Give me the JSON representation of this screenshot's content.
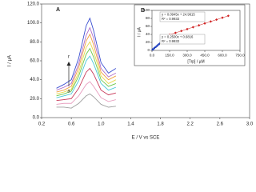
{
  "chart_data": [
    {
      "type": "line",
      "x_label": "E / V vs SCE",
      "y_label": "I / µA",
      "annotations": [
        "A",
        "r",
        "a"
      ],
      "x": [
        0.4,
        0.5,
        0.6,
        0.7,
        0.8,
        0.85,
        0.9,
        1.0,
        1.1,
        1.2
      ],
      "xlim": [
        0.2,
        3.0
      ],
      "xticks": [
        0.2,
        0.6,
        {
          "value": 1,
          "label": "1.0"
        },
        1.4,
        1.8,
        2.2,
        2.6,
        {
          "value": 3,
          "label": "3.0"
        }
      ],
      "ylim": [
        0,
        120
      ],
      "yticks": [
        {
          "value": 0,
          "label": "0.0"
        },
        {
          "value": 20,
          "label": "20.0"
        },
        {
          "value": 40,
          "label": "40.0"
        },
        {
          "value": 60,
          "label": "60.0"
        },
        {
          "value": 80,
          "label": "80.0"
        },
        {
          "value": 100,
          "label": "100.0"
        },
        {
          "value": 120,
          "label": "120.0"
        }
      ],
      "series": [
        {
          "color": "#3b4fd1",
          "values": [
            31,
            35,
            40,
            63,
            97,
            105,
            92,
            58,
            47,
            52
          ]
        },
        {
          "color": "#b06cc8",
          "values": [
            29,
            32,
            36,
            57,
            87,
            95,
            84,
            52,
            43,
            47
          ]
        },
        {
          "color": "#f0a040",
          "values": [
            27,
            29,
            33,
            53,
            81,
            88,
            77,
            48,
            40,
            44
          ]
        },
        {
          "color": "#e8d84a",
          "values": [
            25,
            27,
            30,
            48,
            74,
            80,
            70,
            44,
            36,
            40
          ]
        },
        {
          "color": "#6cc84a",
          "values": [
            23,
            25,
            28,
            44,
            67,
            73,
            64,
            40,
            33,
            36
          ]
        },
        {
          "color": "#4ac8d8",
          "values": [
            21,
            23,
            25,
            39,
            60,
            65,
            57,
            36,
            29,
            32
          ]
        },
        {
          "color": "#c83a5a",
          "values": [
            18,
            19,
            20,
            31,
            48,
            52,
            46,
            29,
            24,
            26
          ]
        },
        {
          "color": "#e8a0c0",
          "values": [
            14,
            15,
            15,
            23,
            35,
            38,
            33,
            21,
            17,
            19
          ]
        },
        {
          "color": "#a0a0a0",
          "values": [
            11,
            11,
            10,
            15,
            23,
            25,
            22,
            14,
            11,
            12
          ]
        }
      ]
    },
    {
      "type": "scatter",
      "title": "B",
      "x_label": "[Trp] / µM",
      "y_label": "I / µA",
      "annotations": [
        "y = 0.0945x + 24.9615",
        "R² = 0.9933",
        "y = 0.2500x + 0.6816",
        "R² = 0.9933"
      ],
      "xlim": [
        0,
        750
      ],
      "xticks": [
        {
          "value": 0,
          "label": "0.0"
        },
        {
          "value": 150,
          "label": "150.0"
        },
        {
          "value": 300,
          "label": "300.0"
        },
        {
          "value": 450,
          "label": "450.0"
        },
        {
          "value": 600,
          "label": "600.0"
        },
        {
          "value": 750,
          "label": "750.0"
        }
      ],
      "ylim": [
        0,
        100
      ],
      "yticks": [
        0,
        20,
        40,
        60,
        80,
        100
      ],
      "series": [
        {
          "color": "#1f3fbf",
          "marker": "square",
          "x": [
            5,
            10,
            20,
            30,
            40,
            50,
            60,
            70,
            80,
            90,
            100,
            110,
            120
          ],
          "values": [
            1.9,
            3.2,
            5.7,
            8.2,
            10.7,
            13.2,
            15.7,
            18.2,
            20.7,
            23.2,
            25.7,
            28.2,
            30.7
          ]
        },
        {
          "color": "#d02020",
          "marker": "diamond",
          "x": [
            150,
            200,
            250,
            300,
            350,
            400,
            450,
            500,
            550,
            600,
            650
          ],
          "values": [
            39.1,
            43.9,
            48.6,
            53.3,
            58.0,
            62.8,
            67.5,
            72.2,
            76.9,
            81.7,
            86.4
          ]
        }
      ]
    }
  ]
}
